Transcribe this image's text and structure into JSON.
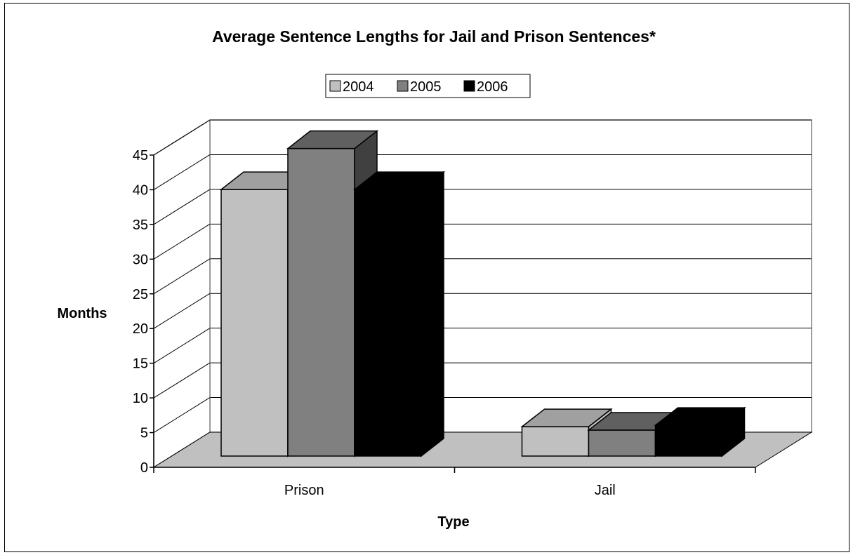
{
  "chart_data": {
    "type": "bar",
    "title": "Average Sentence Lengths for Jail and Prison Sentences*",
    "xlabel": "Type",
    "ylabel": "Months",
    "categories": [
      "Prison",
      "Jail"
    ],
    "series": [
      {
        "name": "2004",
        "values": [
          39,
          4.3
        ],
        "color": "#c0c0c0",
        "side_color": "#c0c0c0",
        "top_color": "#a0a0a0"
      },
      {
        "name": "2005",
        "values": [
          45,
          3.8
        ],
        "color": "#808080",
        "side_color": "#404040",
        "top_color": "#606060"
      },
      {
        "name": "2006",
        "values": [
          39,
          4.5
        ],
        "color": "#000000",
        "side_color": "#000000",
        "top_color": "#000000"
      }
    ],
    "yticks": [
      "0",
      "5",
      "10",
      "15",
      "20",
      "25",
      "30",
      "35",
      "40",
      "45"
    ],
    "ylim": [
      0,
      45
    ],
    "grid": true,
    "legend_position": "top",
    "is_3d": true,
    "floor_color": "#c0c0c0"
  }
}
